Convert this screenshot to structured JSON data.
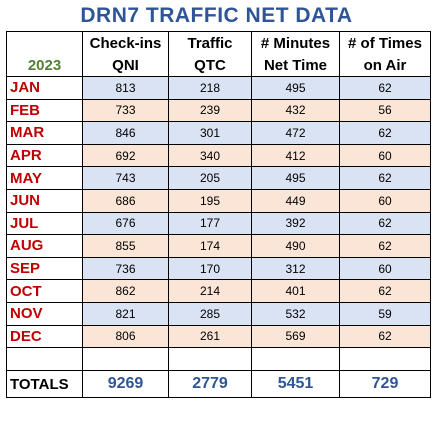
{
  "title": "DRN7  TRAFFIC NET DATA",
  "year": "2023",
  "headers": {
    "row1": [
      "Check-ins",
      "Traffic",
      "# Minutes",
      "# of Times"
    ],
    "row2": [
      "QNI",
      "QTC",
      "Net Time",
      "on Air"
    ]
  },
  "rows": [
    {
      "month": "JAN",
      "qni": "813",
      "qtc": "218",
      "minutes": "495",
      "times": "62"
    },
    {
      "month": "FEB",
      "qni": "733",
      "qtc": "239",
      "minutes": "432",
      "times": "56"
    },
    {
      "month": "MAR",
      "qni": "846",
      "qtc": "301",
      "minutes": "472",
      "times": "62"
    },
    {
      "month": "APR",
      "qni": "692",
      "qtc": "340",
      "minutes": "412",
      "times": "60"
    },
    {
      "month": "MAY",
      "qni": "743",
      "qtc": "205",
      "minutes": "495",
      "times": "62"
    },
    {
      "month": "JUN",
      "qni": "686",
      "qtc": "195",
      "minutes": "449",
      "times": "60"
    },
    {
      "month": "JUL",
      "qni": "676",
      "qtc": "177",
      "minutes": "392",
      "times": "62"
    },
    {
      "month": "AUG",
      "qni": "855",
      "qtc": "174",
      "minutes": "490",
      "times": "62"
    },
    {
      "month": "SEP",
      "qni": "736",
      "qtc": "170",
      "minutes": "312",
      "times": "60"
    },
    {
      "month": "OCT",
      "qni": "862",
      "qtc": "214",
      "minutes": "401",
      "times": "62"
    },
    {
      "month": "NOV",
      "qni": "821",
      "qtc": "285",
      "minutes": "532",
      "times": "59"
    },
    {
      "month": "DEC",
      "qni": "806",
      "qtc": "261",
      "minutes": "569",
      "times": "62"
    }
  ],
  "totals": {
    "label": "TOTALS",
    "qni": "9269",
    "qtc": "2779",
    "minutes": "5451",
    "times": "729"
  },
  "colors": {
    "title": "#2f5597",
    "month": "#c00000",
    "year": "#548235",
    "band_blue": "#dae3f3",
    "band_peach": "#fbe5d6"
  }
}
